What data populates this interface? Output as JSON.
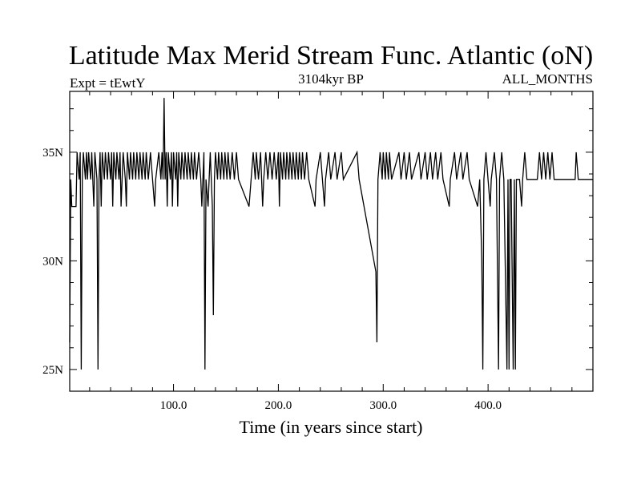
{
  "chart_data": {
    "type": "line",
    "title": "Latitude Max Merid Stream Func. Atlantic (oN)",
    "subtitle_left": "Expt = tEwtY",
    "subtitle_center": "3104kyr BP",
    "subtitle_right": "ALL_MONTHS",
    "xlabel": "Time (in years since start)",
    "ylabel": "",
    "xlim": [
      1,
      500
    ],
    "ylim": [
      24,
      37.8
    ],
    "x_ticks": [
      100,
      200,
      300,
      400
    ],
    "x_tick_labels": [
      "100.0",
      "200.0",
      "300.0",
      "400.0"
    ],
    "y_ticks": [
      25,
      30,
      35
    ],
    "y_tick_labels": [
      "25N",
      "30N",
      "35N"
    ],
    "grid": false,
    "line_color": "#000000",
    "baseline": 33.75,
    "levels": [
      32.5,
      33.75,
      35
    ],
    "series": [
      {
        "name": "",
        "segments": [
          [
            1,
            26.25
          ],
          [
            2,
            33.75
          ],
          [
            3,
            32.5
          ],
          [
            7,
            32.5
          ],
          [
            8,
            35
          ],
          [
            10,
            33.75
          ],
          [
            11,
            35
          ],
          [
            12,
            25
          ],
          [
            13,
            33.75
          ],
          [
            14,
            35
          ],
          [
            16,
            33.75
          ],
          [
            17,
            35
          ],
          [
            18,
            33.75
          ],
          [
            19,
            35
          ],
          [
            21,
            33.75
          ],
          [
            22,
            35
          ],
          [
            24,
            32.5
          ],
          [
            25,
            35
          ],
          [
            27,
            33.75
          ],
          [
            28,
            25
          ],
          [
            29,
            33.75
          ],
          [
            30,
            35
          ],
          [
            31,
            32.5
          ],
          [
            32,
            35
          ],
          [
            34,
            33.75
          ],
          [
            35,
            35
          ],
          [
            37,
            33.75
          ],
          [
            38,
            35
          ],
          [
            40,
            33.75
          ],
          [
            41,
            35
          ],
          [
            42,
            32.5
          ],
          [
            43,
            35
          ],
          [
            45,
            33.75
          ],
          [
            46,
            35
          ],
          [
            48,
            33.75
          ],
          [
            49,
            35
          ],
          [
            50,
            32.5
          ],
          [
            51,
            33.75
          ],
          [
            52,
            35
          ],
          [
            54,
            33.75
          ],
          [
            55,
            32.5
          ],
          [
            56,
            35
          ],
          [
            58,
            33.75
          ],
          [
            59,
            35
          ],
          [
            61,
            33.75
          ],
          [
            62,
            35
          ],
          [
            64,
            33.75
          ],
          [
            65,
            35
          ],
          [
            67,
            33.75
          ],
          [
            68,
            35
          ],
          [
            70,
            33.75
          ],
          [
            71,
            35
          ],
          [
            73,
            33.75
          ],
          [
            74,
            35
          ],
          [
            76,
            33.75
          ],
          [
            78,
            35
          ],
          [
            80,
            33.75
          ],
          [
            82,
            32.5
          ],
          [
            83,
            33.75
          ],
          [
            86,
            35
          ],
          [
            88,
            33.75
          ],
          [
            89,
            35
          ],
          [
            90,
            33.75
          ],
          [
            91,
            37.5
          ],
          [
            92,
            33.75
          ],
          [
            93,
            35
          ],
          [
            94,
            32.5
          ],
          [
            95,
            35
          ],
          [
            97,
            33.75
          ],
          [
            98,
            35
          ],
          [
            99,
            32.5
          ],
          [
            100,
            35
          ],
          [
            102,
            33.75
          ],
          [
            103,
            35
          ],
          [
            104,
            32.5
          ],
          [
            105,
            35
          ],
          [
            107,
            33.75
          ],
          [
            108,
            35
          ],
          [
            110,
            33.75
          ],
          [
            111,
            35
          ],
          [
            113,
            33.75
          ],
          [
            114,
            35
          ],
          [
            116,
            33.75
          ],
          [
            117,
            35
          ],
          [
            119,
            33.75
          ],
          [
            120,
            35
          ],
          [
            122,
            33.75
          ],
          [
            124,
            35
          ],
          [
            126,
            33.75
          ],
          [
            127,
            32.5
          ],
          [
            128,
            33.75
          ],
          [
            129,
            35
          ],
          [
            130,
            25
          ],
          [
            131,
            33.75
          ],
          [
            133,
            32.5
          ],
          [
            134,
            33.75
          ],
          [
            135,
            35
          ],
          [
            137,
            32.5
          ],
          [
            138,
            27.5
          ],
          [
            139,
            33.75
          ],
          [
            140,
            35
          ],
          [
            142,
            33.75
          ],
          [
            143,
            35
          ],
          [
            145,
            33.75
          ],
          [
            146,
            35
          ],
          [
            148,
            33.75
          ],
          [
            149,
            35
          ],
          [
            151,
            33.75
          ],
          [
            152,
            35
          ],
          [
            154,
            33.75
          ],
          [
            156,
            35
          ],
          [
            158,
            33.75
          ],
          [
            160,
            35
          ],
          [
            162,
            33.75
          ],
          [
            172,
            32.5
          ],
          [
            174,
            33.75
          ],
          [
            176,
            35
          ],
          [
            178,
            33.75
          ],
          [
            179,
            35
          ],
          [
            181,
            33.75
          ],
          [
            183,
            35
          ],
          [
            185,
            32.5
          ],
          [
            186,
            33.75
          ],
          [
            188,
            35
          ],
          [
            190,
            33.75
          ],
          [
            192,
            35
          ],
          [
            194,
            33.75
          ],
          [
            196,
            35
          ],
          [
            198,
            33.75
          ],
          [
            200,
            35
          ],
          [
            201,
            32.5
          ],
          [
            202,
            35
          ],
          [
            204,
            33.75
          ],
          [
            205,
            35
          ],
          [
            207,
            33.75
          ],
          [
            208,
            35
          ],
          [
            210,
            33.75
          ],
          [
            211,
            35
          ],
          [
            213,
            33.75
          ],
          [
            214,
            35
          ],
          [
            216,
            33.75
          ],
          [
            217,
            35
          ],
          [
            219,
            33.75
          ],
          [
            220,
            35
          ],
          [
            222,
            33.75
          ],
          [
            223,
            35
          ],
          [
            225,
            33.75
          ],
          [
            227,
            35
          ],
          [
            229,
            33.75
          ],
          [
            235,
            32.5
          ],
          [
            236,
            33.75
          ],
          [
            240,
            35
          ],
          [
            242,
            33.75
          ],
          [
            244,
            32.5
          ],
          [
            245,
            33.75
          ],
          [
            248,
            35
          ],
          [
            250,
            33.75
          ],
          [
            254,
            35
          ],
          [
            256,
            33.75
          ],
          [
            260,
            35
          ],
          [
            262,
            33.75
          ],
          [
            275,
            35
          ],
          [
            277,
            33.75
          ],
          [
            293,
            29.5
          ],
          [
            294,
            26.25
          ],
          [
            295,
            33.75
          ],
          [
            297,
            35
          ],
          [
            299,
            33.75
          ],
          [
            300,
            35
          ],
          [
            302,
            33.75
          ],
          [
            303,
            35
          ],
          [
            305,
            33.75
          ],
          [
            306,
            35
          ],
          [
            308,
            33.75
          ],
          [
            315,
            35
          ],
          [
            317,
            33.75
          ],
          [
            320,
            35
          ],
          [
            322,
            33.75
          ],
          [
            325,
            35
          ],
          [
            327,
            33.75
          ],
          [
            334,
            35
          ],
          [
            336,
            33.75
          ],
          [
            340,
            35
          ],
          [
            342,
            33.75
          ],
          [
            345,
            35
          ],
          [
            347,
            33.75
          ],
          [
            350,
            35
          ],
          [
            352,
            33.75
          ],
          [
            355,
            35
          ],
          [
            357,
            33.75
          ],
          [
            363,
            32.5
          ],
          [
            364,
            33.75
          ],
          [
            368,
            35
          ],
          [
            370,
            33.75
          ],
          [
            374,
            35
          ],
          [
            376,
            33.75
          ],
          [
            380,
            35
          ],
          [
            382,
            33.75
          ],
          [
            390,
            32.5
          ],
          [
            392,
            33.75
          ],
          [
            394,
            30
          ],
          [
            395,
            25
          ],
          [
            396,
            33.75
          ],
          [
            398,
            35
          ],
          [
            400,
            33.75
          ],
          [
            402,
            32.5
          ],
          [
            403,
            33.75
          ],
          [
            406,
            35
          ],
          [
            408,
            33.75
          ],
          [
            410,
            25
          ],
          [
            411,
            33.75
          ],
          [
            413,
            35
          ],
          [
            415,
            33.75
          ],
          [
            418,
            25
          ],
          [
            419,
            33.75
          ],
          [
            420,
            25
          ],
          [
            421,
            33.75
          ],
          [
            422,
            33.75
          ],
          [
            424,
            25
          ],
          [
            425,
            33.75
          ],
          [
            426,
            25
          ],
          [
            427,
            33.75
          ],
          [
            430,
            33.75
          ],
          [
            432,
            32.5
          ],
          [
            433,
            33.75
          ],
          [
            435,
            35
          ],
          [
            437,
            33.75
          ],
          [
            440,
            33.75
          ],
          [
            447,
            33.75
          ],
          [
            449,
            35
          ],
          [
            451,
            33.75
          ],
          [
            453,
            35
          ],
          [
            455,
            33.75
          ],
          [
            457,
            35
          ],
          [
            459,
            33.75
          ],
          [
            461,
            35
          ],
          [
            463,
            33.75
          ],
          [
            465,
            33.75
          ],
          [
            483,
            33.75
          ],
          [
            484,
            35
          ],
          [
            486,
            33.75
          ],
          [
            500,
            33.75
          ]
        ]
      }
    ]
  }
}
